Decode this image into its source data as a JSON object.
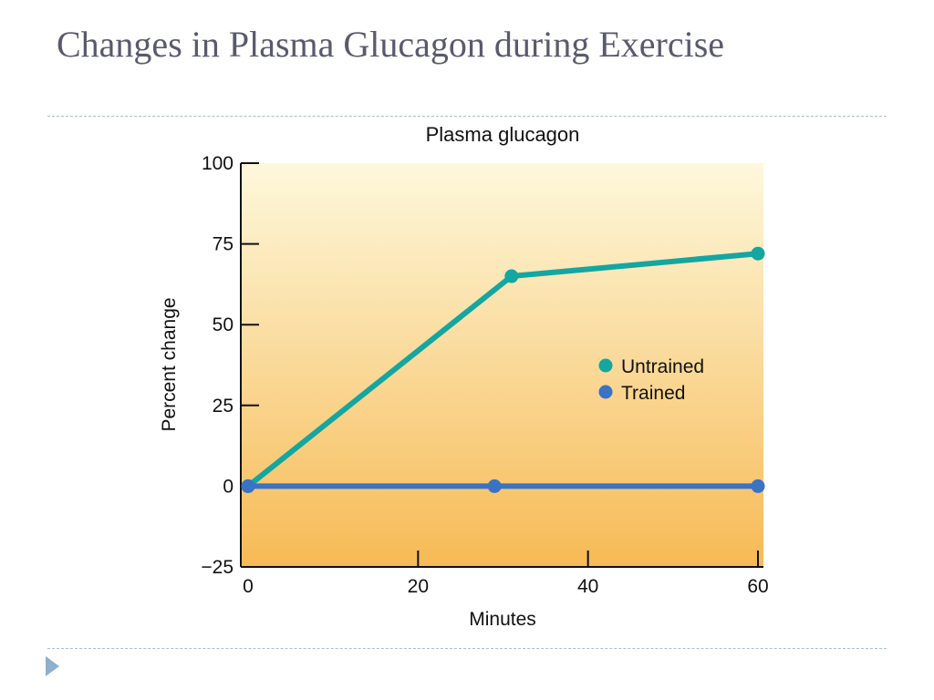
{
  "slide": {
    "title": "Changes in Plasma Glucagon during Exercise"
  },
  "colors": {
    "untrained": "#14a6a0",
    "trained": "#3a72c6",
    "background_top": "#fdf8dc",
    "background_bottom": "#f7ba55"
  },
  "chart_data": {
    "type": "line",
    "title": "Plasma glucagon",
    "xlabel": "Minutes",
    "ylabel": "Percent change",
    "xlim": [
      0,
      60
    ],
    "ylim": [
      -25,
      100
    ],
    "xticks": [
      0,
      20,
      40,
      60
    ],
    "xtick_labels": [
      "0",
      "20",
      "40",
      "60"
    ],
    "yticks": [
      -25,
      0,
      25,
      50,
      75,
      100
    ],
    "ytick_labels": [
      "−25",
      "0",
      "25",
      "50",
      "75",
      "100"
    ],
    "legend_position": "center-right",
    "grid": false,
    "series": [
      {
        "name": "Untrained",
        "color": "#14a6a0",
        "x": [
          0,
          31,
          60
        ],
        "y": [
          0,
          65,
          72
        ]
      },
      {
        "name": "Trained",
        "color": "#3a72c6",
        "x": [
          0,
          29,
          60
        ],
        "y": [
          0,
          0,
          0
        ]
      }
    ]
  }
}
